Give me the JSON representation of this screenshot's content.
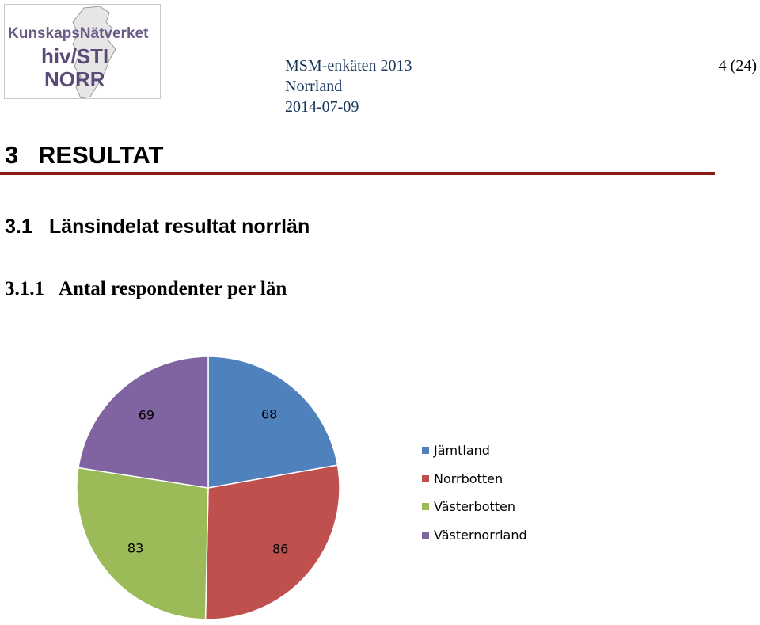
{
  "header": {
    "logo": {
      "line1": "KunskapsNätverket",
      "line2": "hiv/STI",
      "line3": "NORR"
    },
    "doc_title": "MSM-enkäten 2013",
    "region": "Norrland",
    "date": "2014-07-09",
    "page": "4 (24)"
  },
  "headings": {
    "h1": {
      "number": "3",
      "text": "RESULTAT"
    },
    "h2": {
      "number": "3.1",
      "text": "Länsindelat resultat norrlän"
    },
    "h3": {
      "number": "3.1.1",
      "text": "Antal respondenter per län"
    }
  },
  "colors": {
    "rule": "#8b1a17",
    "header_text": "#17365d"
  },
  "chart_data": {
    "type": "pie",
    "title": "",
    "legend_position": "right",
    "start_angle_deg": 0,
    "direction": "clockwise",
    "slices": [
      {
        "label": "Jämtland",
        "value": 68,
        "color": "#4f81bd"
      },
      {
        "label": "Norrbotten",
        "value": 86,
        "color": "#c0504d"
      },
      {
        "label": "Västerbotten",
        "value": 83,
        "color": "#9bbb59"
      },
      {
        "label": "Västernorrland",
        "value": 69,
        "color": "#8064a2"
      }
    ]
  }
}
